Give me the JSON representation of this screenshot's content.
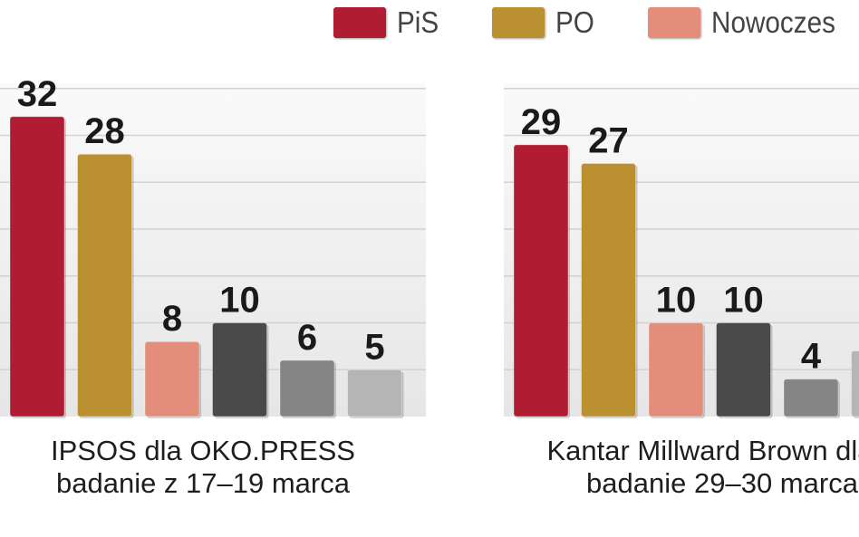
{
  "legend": [
    {
      "label": "PiS",
      "color": "#b01c32"
    },
    {
      "label": "PO",
      "color": "#bb9030"
    },
    {
      "label": "Nowoczes",
      "color": "#e28e7a"
    }
  ],
  "chart_data": {
    "type": "bar",
    "ylim": [
      0,
      35
    ],
    "grid": true,
    "legend_position": "top",
    "bar_colors": [
      "#b01c32",
      "#bb9030",
      "#e28e7a",
      "#4a4a4a",
      "#858585",
      "#b5b5b5"
    ],
    "groups": [
      {
        "caption": [
          "IPSOS dla OKO.PRESS",
          "badanie z 17–19 marca"
        ],
        "values": [
          32,
          28,
          8,
          10,
          6,
          5
        ]
      },
      {
        "caption": [
          "Kantar Millward Brown dla T",
          "badanie 29–30 marca"
        ],
        "values": [
          29,
          27,
          10,
          10,
          4,
          7
        ]
      }
    ]
  }
}
